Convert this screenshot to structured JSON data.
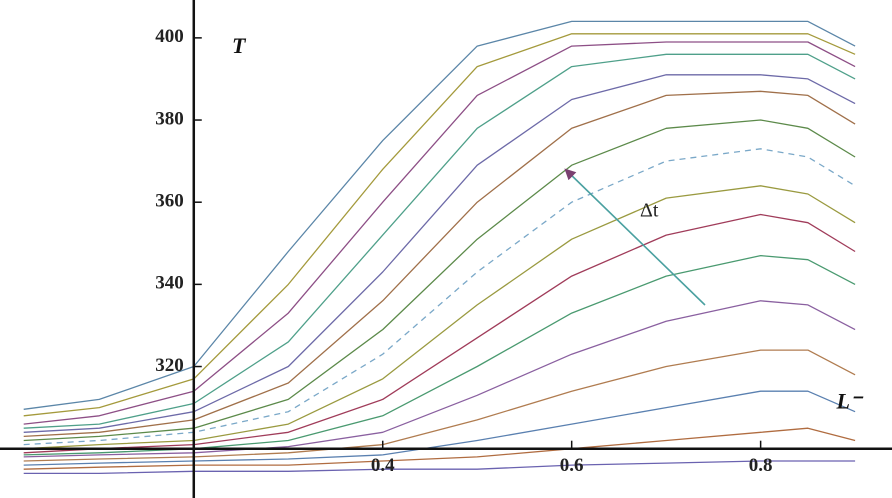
{
  "chart_data": {
    "type": "line",
    "y_label": "T",
    "x_label": "L⁻",
    "annotation": "Δt",
    "axes_origin": {
      "x": 0.2,
      "y": 300
    },
    "xlim": [
      0.015,
      0.92
    ],
    "ylim": [
      288,
      408
    ],
    "xticks": [
      0.4,
      0.6,
      0.8
    ],
    "yticks": [
      320,
      340,
      360,
      380,
      400
    ],
    "x": [
      0.02,
      0.1,
      0.2,
      0.3,
      0.4,
      0.5,
      0.6,
      0.7,
      0.8,
      0.85,
      0.9
    ],
    "series": [
      {
        "color": "#5b86a8",
        "values": [
          309.6,
          312,
          320,
          348,
          375,
          398,
          404,
          404,
          404,
          404,
          398
        ]
      },
      {
        "color": "#a49a3c",
        "values": [
          308,
          310,
          317,
          340,
          368,
          393,
          401,
          401,
          401,
          401,
          396
        ]
      },
      {
        "color": "#8d4f86",
        "values": [
          306,
          308,
          314,
          333,
          360,
          386,
          398,
          399,
          399,
          399,
          393
        ]
      },
      {
        "color": "#4fa08a",
        "values": [
          305,
          306,
          311,
          326,
          352,
          378,
          393,
          396,
          396,
          396,
          390
        ]
      },
      {
        "color": "#6d6aa8",
        "values": [
          304,
          305,
          309,
          320,
          343,
          369,
          385,
          391,
          391,
          390,
          384
        ]
      },
      {
        "color": "#a0704a",
        "values": [
          303,
          304,
          307,
          316,
          336,
          360,
          378,
          386,
          387,
          386,
          379
        ]
      },
      {
        "color": "#5c8a4a",
        "values": [
          302,
          303,
          305,
          312,
          329,
          351,
          369,
          378,
          380,
          378,
          371
        ]
      },
      {
        "color": "#7aa8c8",
        "dashed": true,
        "values": [
          301,
          302,
          304,
          309,
          323,
          343,
          360,
          370,
          373,
          371,
          364
        ]
      },
      {
        "color": "#9a9a40",
        "values": [
          300,
          301,
          302,
          306,
          317,
          335,
          351,
          361,
          364,
          362,
          355
        ]
      },
      {
        "color": "#a03c5a",
        "values": [
          299,
          300,
          301,
          304,
          312,
          327,
          342,
          352,
          357,
          355,
          348
        ]
      },
      {
        "color": "#4a9a70",
        "values": [
          298.5,
          299,
          300,
          302,
          308,
          320,
          333,
          342,
          347,
          346,
          340
        ]
      },
      {
        "color": "#8a60a0",
        "values": [
          298,
          298.5,
          299,
          300.5,
          304,
          313,
          323,
          331,
          336,
          335,
          329
        ]
      },
      {
        "color": "#b07c50",
        "values": [
          297,
          297.5,
          298,
          299,
          301,
          307,
          314,
          320,
          324,
          324,
          318
        ]
      },
      {
        "color": "#5a80b0",
        "values": [
          296,
          296.5,
          297,
          297.5,
          298.5,
          302,
          306,
          310,
          314,
          314,
          309
        ]
      },
      {
        "color": "#b06c40",
        "values": [
          295,
          295.5,
          296,
          296,
          297,
          298,
          300,
          302,
          304,
          305,
          302
        ]
      },
      {
        "color": "#6a62b0",
        "values": [
          294,
          294,
          294.5,
          294.5,
          295,
          295,
          296,
          296.5,
          297,
          297,
          297
        ]
      }
    ]
  }
}
